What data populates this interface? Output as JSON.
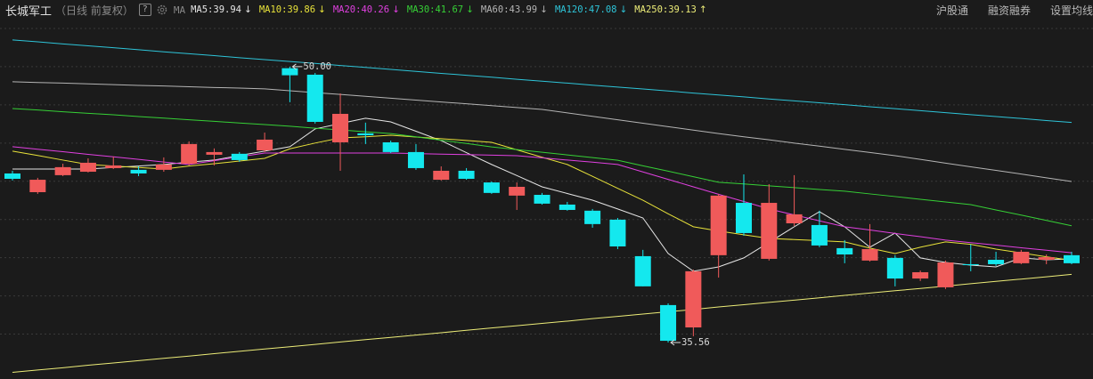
{
  "header": {
    "title": "长城军工",
    "subtitle": "（日线 前复权）",
    "ma_label": "MA",
    "links": [
      "沪股通",
      "融资融券",
      "设置均线"
    ]
  },
  "chart_data": {
    "type": "candlestick",
    "open": [
      44.41,
      43.43,
      44.32,
      44.5,
      44.69,
      44.6,
      44.6,
      44.92,
      45.39,
      45.44,
      45.62,
      49.92,
      49.58,
      46.04,
      46.51,
      46.04,
      45.53,
      44.08,
      44.55,
      43.94,
      43.25,
      43.29,
      42.78,
      42.46,
      41.99,
      40.08,
      37.52,
      36.35,
      40.13,
      42.87,
      39.94,
      41.8,
      41.71,
      40.5,
      39.85,
      39.99,
      38.91,
      38.45,
      39.66,
      39.89,
      39.71,
      39.89,
      40.13
    ],
    "high": [
      44.55,
      44.18,
      44.92,
      45.2,
      45.3,
      44.78,
      45.25,
      46.09,
      45.72,
      45.53,
      46.55,
      50.0,
      49.67,
      48.6,
      47.07,
      46.13,
      45.95,
      44.78,
      44.69,
      43.99,
      43.94,
      43.39,
      42.92,
      42.55,
      42.08,
      40.41,
      37.61,
      39.38,
      43.34,
      44.36,
      43.85,
      44.32,
      42.46,
      40.92,
      41.76,
      40.13,
      39.33,
      39.85,
      40.69,
      40.31,
      40.41,
      40.17,
      40.31
    ],
    "low": [
      44.04,
      43.34,
      44.27,
      44.46,
      44.64,
      44.27,
      44.5,
      44.83,
      44.83,
      45.02,
      45.53,
      48.14,
      47.02,
      44.55,
      45.95,
      45.48,
      44.6,
      44.04,
      44.08,
      43.34,
      42.5,
      42.78,
      42.46,
      41.57,
      40.45,
      38.5,
      35.56,
      35.89,
      38.96,
      41.15,
      39.85,
      41.66,
      40.55,
      39.71,
      39.8,
      38.5,
      38.78,
      38.36,
      39.29,
      39.57,
      39.66,
      39.66,
      39.66
    ],
    "close": [
      44.13,
      44.08,
      44.74,
      44.97,
      44.83,
      44.41,
      44.88,
      45.95,
      45.53,
      45.11,
      46.18,
      49.55,
      47.11,
      47.53,
      46.41,
      45.53,
      44.69,
      44.55,
      44.13,
      43.39,
      43.71,
      42.83,
      42.5,
      41.76,
      40.59,
      38.5,
      35.65,
      39.29,
      43.25,
      41.29,
      42.87,
      42.27,
      40.64,
      40.17,
      40.45,
      38.91,
      39.24,
      39.75,
      39.61,
      39.66,
      40.31,
      40.03,
      39.71
    ],
    "up_color": "#f05a5a",
    "down_color": "#14e8ee",
    "ylim": [
      33.65,
      53.49
    ],
    "yticks": [
      36,
      38,
      40,
      42,
      44,
      46,
      48,
      50,
      52
    ],
    "grid": true,
    "annotations": [
      {
        "value": 50,
        "label": "50.00"
      },
      35.56
    ],
    "series": [
      {
        "name": "MA5",
        "legend_label": "MA5:39.94",
        "trend": "↓",
        "color": "#e6e6e6",
        "values": [
          44.64,
          44.64,
          44.64,
          44.64,
          44.72,
          44.8,
          44.88,
          45.0,
          45.11,
          45.35,
          45.58,
          45.81,
          46.74,
          47.02,
          47.3,
          47.11,
          46.62,
          46.13,
          45.5,
          44.88,
          44.3,
          43.71,
          43.36,
          43.01,
          42.55,
          42.08,
          40.22,
          39.29,
          39.52,
          39.99,
          40.8,
          41.62,
          42.41,
          41.62,
          40.55,
          41.29,
          39.99,
          39.75,
          39.61,
          39.52,
          39.99,
          39.89,
          39.94
        ]
      },
      {
        "name": "MA10",
        "legend_label": "MA10:39.86",
        "trend": "↓",
        "color": "#e8e23a",
        "values": [
          45.58,
          45.35,
          45.11,
          44.88,
          44.8,
          44.72,
          44.64,
          44.8,
          44.92,
          45.06,
          45.2,
          45.7,
          46.0,
          46.27,
          46.33,
          46.41,
          46.32,
          46.23,
          46.14,
          46.04,
          45.65,
          45.26,
          44.88,
          44.26,
          43.63,
          43.01,
          42.3,
          41.62,
          41.4,
          41.2,
          41.01,
          40.95,
          40.89,
          40.83,
          40.5,
          40.22,
          40.55,
          40.83,
          40.7,
          40.45,
          40.25,
          40.05,
          39.86
        ]
      },
      {
        "name": "MA20",
        "legend_label": "MA20:40.26",
        "trend": "↓",
        "color": "#e040e0",
        "values": [
          45.81,
          45.68,
          45.55,
          45.41,
          45.28,
          45.15,
          45.01,
          44.88,
          45.08,
          45.28,
          45.48,
          45.48,
          45.48,
          45.48,
          45.48,
          45.48,
          45.45,
          45.42,
          45.4,
          45.37,
          45.34,
          45.23,
          45.11,
          45.0,
          44.88,
          44.49,
          44.1,
          43.71,
          43.32,
          42.94,
          42.55,
          42.24,
          41.93,
          41.62,
          41.45,
          41.27,
          41.1,
          40.92,
          40.79,
          40.66,
          40.52,
          40.39,
          40.26
        ]
      },
      {
        "name": "MA30",
        "legend_label": "MA30:41.67",
        "trend": "↓",
        "color": "#36d036",
        "values": [
          47.81,
          47.73,
          47.64,
          47.56,
          47.48,
          47.39,
          47.31,
          47.22,
          47.14,
          47.05,
          46.97,
          46.88,
          46.78,
          46.69,
          46.59,
          46.5,
          46.33,
          46.15,
          45.98,
          45.8,
          45.66,
          45.52,
          45.38,
          45.24,
          45.1,
          44.81,
          44.53,
          44.24,
          43.95,
          43.86,
          43.76,
          43.67,
          43.57,
          43.48,
          43.34,
          43.2,
          43.06,
          42.92,
          42.78,
          42.5,
          42.23,
          41.95,
          41.67
        ]
      },
      {
        "name": "MA60",
        "legend_label": "MA60:43.99",
        "trend": "↓",
        "color": "#b4b4b4",
        "values": [
          49.21,
          49.17,
          49.14,
          49.1,
          49.06,
          49.02,
          48.99,
          48.95,
          48.91,
          48.88,
          48.84,
          48.74,
          48.64,
          48.55,
          48.45,
          48.35,
          48.25,
          48.15,
          48.06,
          47.96,
          47.86,
          47.76,
          47.58,
          47.4,
          47.22,
          47.04,
          46.86,
          46.68,
          46.5,
          46.33,
          46.17,
          46.0,
          45.84,
          45.67,
          45.51,
          45.34,
          45.15,
          44.95,
          44.76,
          44.57,
          44.38,
          44.18,
          43.99
        ]
      },
      {
        "name": "MA120",
        "legend_label": "MA120:47.08",
        "trend": "↓",
        "color": "#2ec4d8",
        "values": [
          51.4,
          51.3,
          51.19,
          51.09,
          50.99,
          50.89,
          50.78,
          50.68,
          50.58,
          50.47,
          50.37,
          50.27,
          50.17,
          50.06,
          49.96,
          49.86,
          49.75,
          49.65,
          49.55,
          49.45,
          49.34,
          49.24,
          49.14,
          49.03,
          48.93,
          48.83,
          48.73,
          48.62,
          48.52,
          48.42,
          48.31,
          48.21,
          48.11,
          48.01,
          47.9,
          47.8,
          47.7,
          47.59,
          47.49,
          47.39,
          47.29,
          47.18,
          47.08
        ]
      },
      {
        "name": "MA250",
        "legend_label": "MA250:39.13",
        "trend": "↑",
        "color": "#ecec78",
        "values": [
          34.0,
          34.12,
          34.24,
          34.37,
          34.49,
          34.61,
          34.73,
          34.85,
          34.98,
          35.1,
          35.22,
          35.34,
          35.46,
          35.59,
          35.71,
          35.83,
          35.95,
          36.07,
          36.2,
          36.32,
          36.44,
          36.56,
          36.68,
          36.81,
          36.93,
          37.05,
          37.17,
          37.29,
          37.42,
          37.54,
          37.66,
          37.78,
          37.9,
          38.03,
          38.15,
          38.27,
          38.39,
          38.51,
          38.64,
          38.76,
          38.88,
          39.0,
          39.13
        ]
      }
    ]
  }
}
